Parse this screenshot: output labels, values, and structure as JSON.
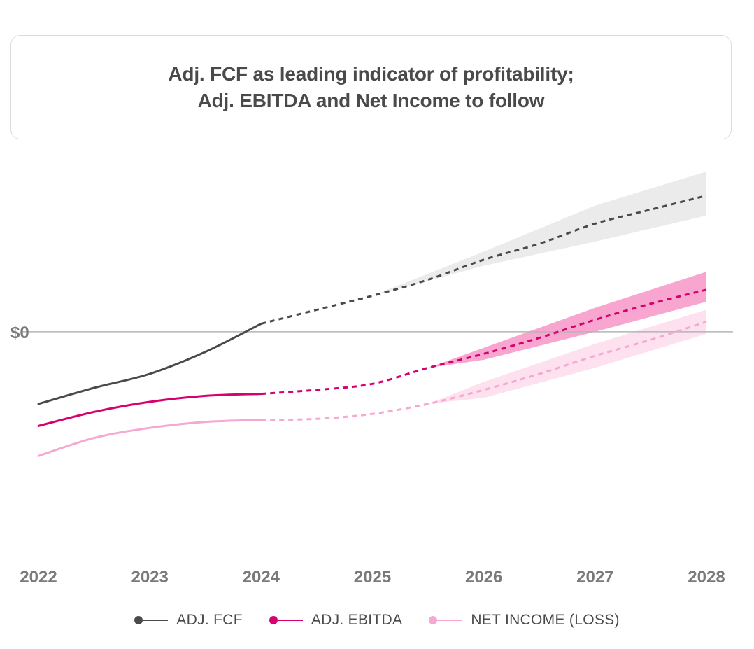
{
  "title": {
    "line1": "Adj. FCF as leading indicator of profitability;",
    "line2": "Adj. EBITDA and Net Income to follow"
  },
  "colors": {
    "fcf": "#4a4a4a",
    "ebitda": "#d6006e",
    "net_income": "#f7a8d2",
    "fcf_band": "#ebebeb",
    "ebitda_band": "#f8a6cf",
    "net_income_band": "#fde1ef",
    "zero_line": "#b5b5b5",
    "tick_label": "#7a7a7a"
  },
  "chart_data": {
    "type": "line",
    "title": "Adj. FCF as leading indicator of profitability; Adj. EBITDA and Net Income to follow",
    "xlabel": "",
    "ylabel": "",
    "x_ticks": [
      "2022",
      "2023",
      "2024",
      "2025",
      "2026",
      "2027",
      "2028"
    ],
    "y_ticks": [
      {
        "value": 0,
        "label": "$0"
      }
    ],
    "ylim": [
      -100,
      80
    ],
    "actual_range": [
      2022,
      2024
    ],
    "forecast_range": [
      2024,
      2028
    ],
    "series": [
      {
        "name": "ADJ. FCF",
        "key": "fcf",
        "actual": [
          [
            2022,
            -36
          ],
          [
            2022.5,
            -28
          ],
          [
            2023,
            -21
          ],
          [
            2023.5,
            -10
          ],
          [
            2024,
            4
          ]
        ],
        "forecast": [
          [
            2024,
            4
          ],
          [
            2024.5,
            11
          ],
          [
            2025,
            18
          ],
          [
            2025.5,
            26
          ],
          [
            2026,
            36
          ],
          [
            2026.5,
            44
          ],
          [
            2027,
            54
          ],
          [
            2027.5,
            61
          ],
          [
            2028,
            68
          ]
        ],
        "band_start": 2025,
        "band": [
          [
            2025,
            18,
            18
          ],
          [
            2026,
            33,
            40
          ],
          [
            2027,
            45,
            63
          ],
          [
            2028,
            58,
            80
          ]
        ]
      },
      {
        "name": "ADJ. EBITDA",
        "key": "ebitda",
        "actual": [
          [
            2022,
            -47
          ],
          [
            2022.5,
            -40
          ],
          [
            2023,
            -35
          ],
          [
            2023.5,
            -32
          ],
          [
            2024,
            -31
          ]
        ],
        "forecast": [
          [
            2024,
            -31
          ],
          [
            2024.5,
            -29
          ],
          [
            2025,
            -26
          ],
          [
            2025.5,
            -18
          ],
          [
            2026,
            -11
          ],
          [
            2026.5,
            -3
          ],
          [
            2027,
            6
          ],
          [
            2027.5,
            14
          ],
          [
            2028,
            21
          ]
        ],
        "band_start": 2025.5,
        "band": [
          [
            2025.5,
            -18,
            -18
          ],
          [
            2026,
            -14,
            -8
          ],
          [
            2027,
            0,
            12
          ],
          [
            2028,
            15,
            30
          ]
        ]
      },
      {
        "name": "NET INCOME (LOSS)",
        "key": "net_income",
        "actual": [
          [
            2022,
            -62
          ],
          [
            2022.5,
            -53
          ],
          [
            2023,
            -48
          ],
          [
            2023.5,
            -45
          ],
          [
            2024,
            -44
          ]
        ],
        "forecast": [
          [
            2024,
            -44
          ],
          [
            2024.5,
            -43.5
          ],
          [
            2025,
            -41
          ],
          [
            2025.5,
            -36
          ],
          [
            2026,
            -29
          ],
          [
            2026.5,
            -21
          ],
          [
            2027,
            -12
          ],
          [
            2027.5,
            -4
          ],
          [
            2028,
            5
          ]
        ],
        "band_start": 2025.5,
        "band": [
          [
            2025.5,
            -36,
            -36
          ],
          [
            2026,
            -33,
            -25
          ],
          [
            2027,
            -18,
            -6
          ],
          [
            2028,
            -1,
            11
          ]
        ]
      }
    ],
    "legend": {
      "position": "bottom-center",
      "entries": [
        "ADJ. FCF",
        "ADJ. EBITDA",
        "NET INCOME (LOSS)"
      ]
    }
  }
}
